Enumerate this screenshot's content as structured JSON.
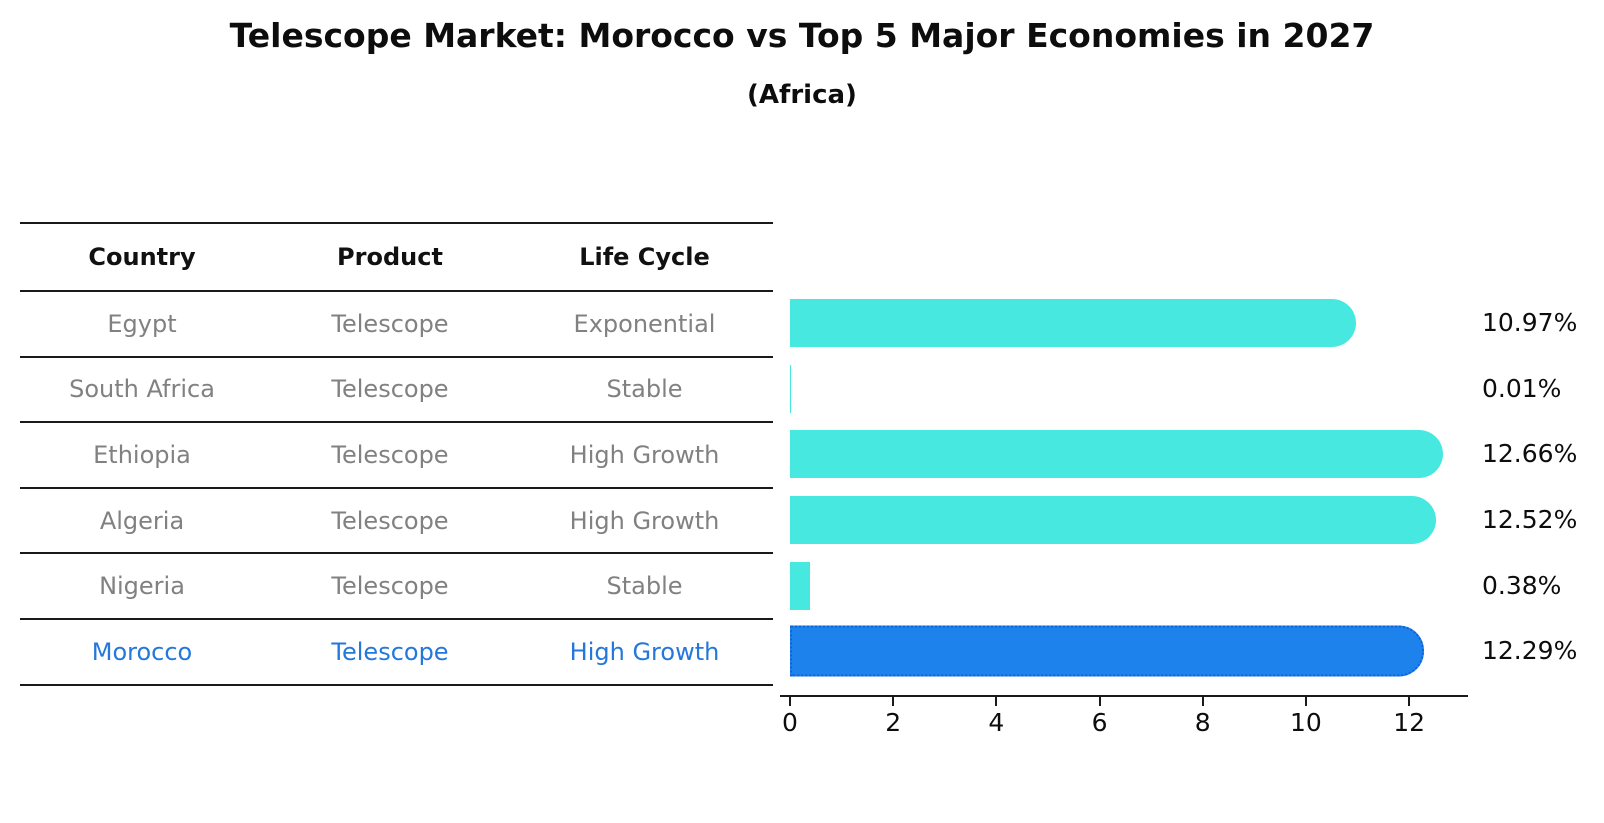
{
  "title": "Telescope Market: Morocco vs Top 5 Major Economies in 2027",
  "subtitle": "(Africa)",
  "table": {
    "headers": [
      "Country",
      "Product",
      "Life Cycle"
    ],
    "rows": [
      {
        "country": "Egypt",
        "product": "Telescope",
        "life_cycle": "Exponential"
      },
      {
        "country": "South Africa",
        "product": "Telescope",
        "life_cycle": "Stable"
      },
      {
        "country": "Ethiopia",
        "product": "Telescope",
        "life_cycle": "High Growth"
      },
      {
        "country": "Algeria",
        "product": "Telescope",
        "life_cycle": "High Growth"
      },
      {
        "country": "Nigeria",
        "product": "Telescope",
        "life_cycle": "Stable"
      },
      {
        "country": "Morocco",
        "product": "Telescope",
        "life_cycle": "High Growth"
      }
    ],
    "highlight_row": "Morocco"
  },
  "chart_data": {
    "type": "bar",
    "orientation": "horizontal",
    "title": "Telescope Market: Morocco vs Top 5 Major Economies in 2027",
    "subtitle": "(Africa)",
    "categories": [
      "Egypt",
      "South Africa",
      "Ethiopia",
      "Algeria",
      "Nigeria",
      "Morocco"
    ],
    "values": [
      10.97,
      0.01,
      12.66,
      12.52,
      0.38,
      12.29
    ],
    "value_labels": [
      "10.97%",
      "0.01%",
      "12.66%",
      "12.52%",
      "0.38%",
      "12.29%"
    ],
    "unit": "%",
    "x_ticks": [
      0,
      2,
      4,
      6,
      8,
      10,
      12
    ],
    "x_tick_labels": [
      "0",
      "2",
      "4",
      "6",
      "8",
      "10",
      "12"
    ],
    "xlim": [
      0,
      13.18
    ],
    "grid": false,
    "legend": null,
    "bar_color": "#47E8DF",
    "highlight_bar_color": "#1E82EC",
    "highlight_border_color": "#0E62D6",
    "highlight_index": 5
  },
  "colors": {
    "background": "#ffffff",
    "text_primary": "#0d0d0d",
    "table_text": "#818181",
    "highlight_text": "#2477DB",
    "line": "#1a1a1a"
  }
}
